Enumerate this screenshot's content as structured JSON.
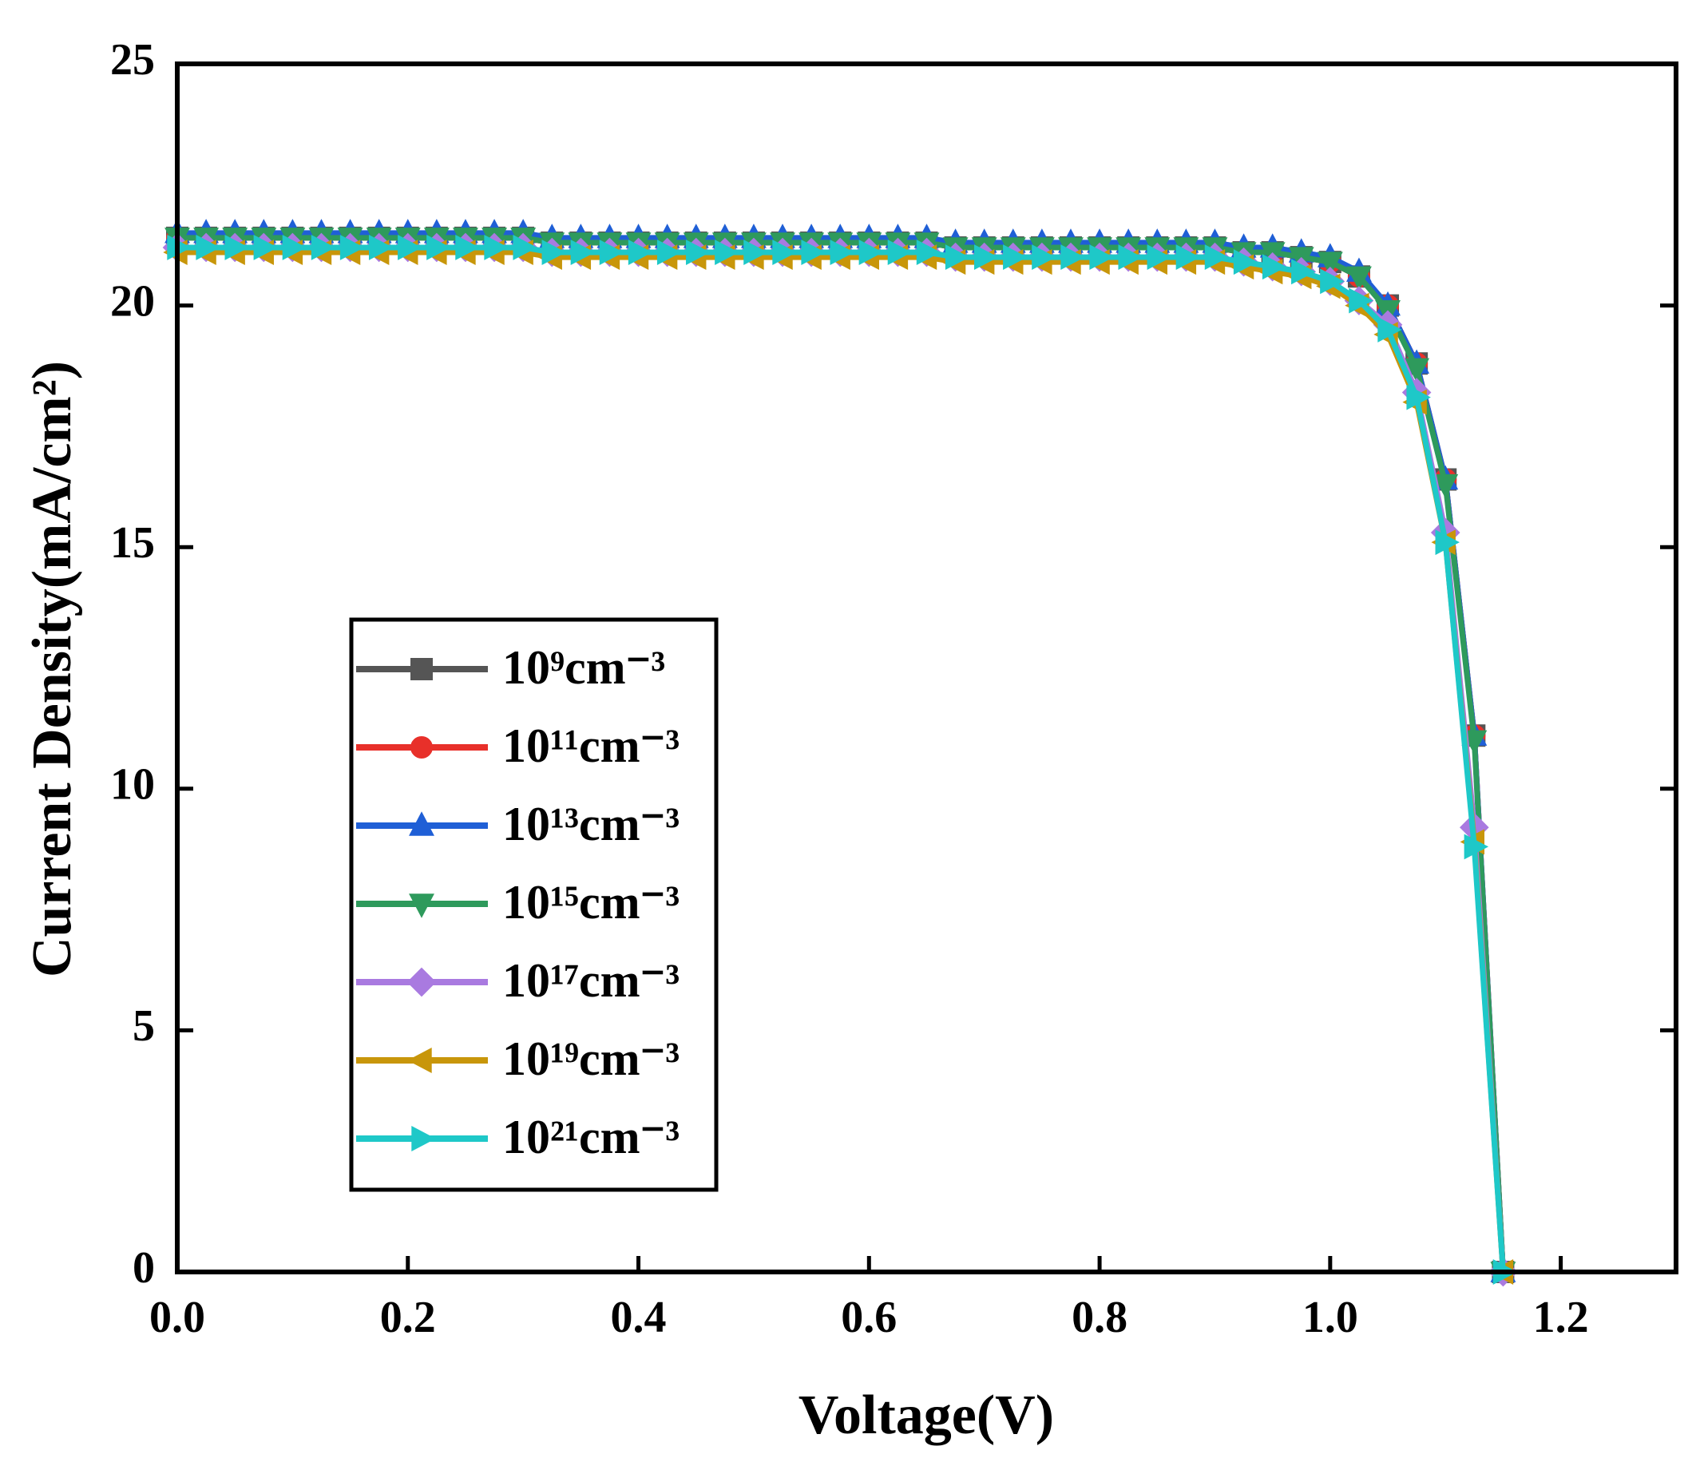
{
  "chart_data": {
    "type": "line",
    "x_label": "Voltage(V)",
    "y_label": "Current Density(mA/cm²)",
    "xlim": [
      0,
      1.3
    ],
    "ylim": [
      0,
      25
    ],
    "xticks": [
      {
        "value": 0,
        "label": "0.0"
      },
      0.2,
      0.4,
      0.6,
      0.8,
      {
        "value": 1,
        "label": "1.0"
      },
      1.2
    ],
    "yticks": [
      0,
      5,
      10,
      15,
      20,
      25
    ],
    "legend": "center left",
    "x": [
      0,
      0.025,
      0.05,
      0.075,
      0.1,
      0.125,
      0.15,
      0.175,
      0.2,
      0.225,
      0.25,
      0.275,
      0.3,
      0.325,
      0.35,
      0.375,
      0.4,
      0.425,
      0.45,
      0.475,
      0.5,
      0.525,
      0.55,
      0.575,
      0.6,
      0.625,
      0.65,
      0.675,
      0.7,
      0.725,
      0.75,
      0.775,
      0.8,
      0.825,
      0.85,
      0.875,
      0.9,
      0.925,
      0.95,
      0.975,
      1.0,
      1.025,
      1.05,
      1.075,
      1.1,
      1.125,
      1.15
    ],
    "series": [
      {
        "name": "10⁹cm⁻³",
        "color": "#555555",
        "marker": "square",
        "values": [
          21.4,
          21.4,
          21.4,
          21.4,
          21.4,
          21.4,
          21.4,
          21.4,
          21.4,
          21.4,
          21.4,
          21.4,
          21.4,
          21.3,
          21.3,
          21.3,
          21.3,
          21.3,
          21.3,
          21.3,
          21.3,
          21.3,
          21.3,
          21.3,
          21.3,
          21.3,
          21.3,
          21.2,
          21.2,
          21.2,
          21.2,
          21.2,
          21.2,
          21.2,
          21.2,
          21.2,
          21.2,
          21.1,
          21.1,
          21.0,
          20.9,
          20.6,
          20.0,
          18.8,
          16.4,
          11.1,
          0
        ]
      },
      {
        "name": "10¹¹cm⁻³",
        "color": "#e8302a",
        "marker": "circle",
        "values": [
          21.4,
          21.4,
          21.4,
          21.4,
          21.4,
          21.4,
          21.4,
          21.4,
          21.4,
          21.4,
          21.4,
          21.4,
          21.4,
          21.3,
          21.3,
          21.3,
          21.3,
          21.3,
          21.3,
          21.3,
          21.3,
          21.3,
          21.3,
          21.3,
          21.3,
          21.3,
          21.3,
          21.2,
          21.2,
          21.2,
          21.2,
          21.2,
          21.2,
          21.2,
          21.2,
          21.2,
          21.2,
          21.1,
          21.1,
          21.0,
          20.9,
          20.6,
          20.0,
          18.8,
          16.4,
          11.1,
          0
        ]
      },
      {
        "name": "10¹³cm⁻³",
        "color": "#1f5fd6",
        "marker": "triangle-up",
        "values": [
          21.5,
          21.5,
          21.5,
          21.5,
          21.5,
          21.5,
          21.5,
          21.5,
          21.5,
          21.5,
          21.5,
          21.5,
          21.5,
          21.4,
          21.4,
          21.4,
          21.4,
          21.4,
          21.4,
          21.4,
          21.4,
          21.4,
          21.4,
          21.4,
          21.4,
          21.4,
          21.4,
          21.3,
          21.3,
          21.3,
          21.3,
          21.3,
          21.3,
          21.3,
          21.3,
          21.3,
          21.3,
          21.2,
          21.2,
          21.1,
          21.0,
          20.7,
          20.0,
          18.8,
          16.4,
          11.1,
          0
        ]
      },
      {
        "name": "10¹⁵cm⁻³",
        "color": "#2e9a5c",
        "marker": "triangle-down",
        "values": [
          21.4,
          21.4,
          21.4,
          21.4,
          21.4,
          21.4,
          21.4,
          21.4,
          21.4,
          21.4,
          21.4,
          21.4,
          21.4,
          21.3,
          21.3,
          21.3,
          21.3,
          21.3,
          21.3,
          21.3,
          21.3,
          21.3,
          21.3,
          21.3,
          21.3,
          21.3,
          21.3,
          21.2,
          21.2,
          21.2,
          21.2,
          21.2,
          21.2,
          21.2,
          21.2,
          21.2,
          21.2,
          21.1,
          21.1,
          21.0,
          20.9,
          20.6,
          19.9,
          18.7,
          16.3,
          11.0,
          0
        ]
      },
      {
        "name": "10¹⁷cm⁻³",
        "color": "#a97ae0",
        "marker": "diamond",
        "values": [
          21.2,
          21.2,
          21.2,
          21.2,
          21.2,
          21.2,
          21.2,
          21.2,
          21.2,
          21.2,
          21.2,
          21.2,
          21.2,
          21.1,
          21.1,
          21.1,
          21.1,
          21.1,
          21.1,
          21.1,
          21.1,
          21.1,
          21.1,
          21.1,
          21.1,
          21.1,
          21.1,
          21.0,
          21.0,
          21.0,
          21.0,
          21.0,
          21.0,
          21.0,
          21.0,
          21.0,
          21.0,
          20.9,
          20.8,
          20.7,
          20.5,
          20.1,
          19.6,
          18.2,
          15.3,
          9.2,
          0
        ]
      },
      {
        "name": "10¹⁹cm⁻³",
        "color": "#c8960a",
        "marker": "triangle-left",
        "values": [
          21.1,
          21.1,
          21.1,
          21.1,
          21.1,
          21.1,
          21.1,
          21.1,
          21.1,
          21.1,
          21.1,
          21.1,
          21.1,
          21.0,
          21.0,
          21.0,
          21.0,
          21.0,
          21.0,
          21.0,
          21.0,
          21.0,
          21.0,
          21.0,
          21.0,
          21.0,
          21.0,
          20.9,
          20.9,
          20.9,
          20.9,
          20.9,
          20.9,
          20.9,
          20.9,
          20.9,
          20.9,
          20.8,
          20.7,
          20.6,
          20.4,
          20.0,
          19.4,
          18.0,
          15.1,
          8.9,
          0
        ]
      },
      {
        "name": "10²¹cm⁻³",
        "color": "#1ec8c8",
        "marker": "triangle-right",
        "values": [
          21.2,
          21.2,
          21.2,
          21.2,
          21.2,
          21.2,
          21.2,
          21.2,
          21.2,
          21.2,
          21.2,
          21.2,
          21.2,
          21.1,
          21.1,
          21.1,
          21.1,
          21.1,
          21.1,
          21.1,
          21.1,
          21.1,
          21.1,
          21.1,
          21.1,
          21.1,
          21.1,
          21.0,
          21.0,
          21.0,
          21.0,
          21.0,
          21.0,
          21.0,
          21.0,
          21.0,
          21.0,
          20.9,
          20.8,
          20.7,
          20.5,
          20.1,
          19.5,
          18.1,
          15.1,
          8.8,
          0
        ]
      }
    ]
  }
}
